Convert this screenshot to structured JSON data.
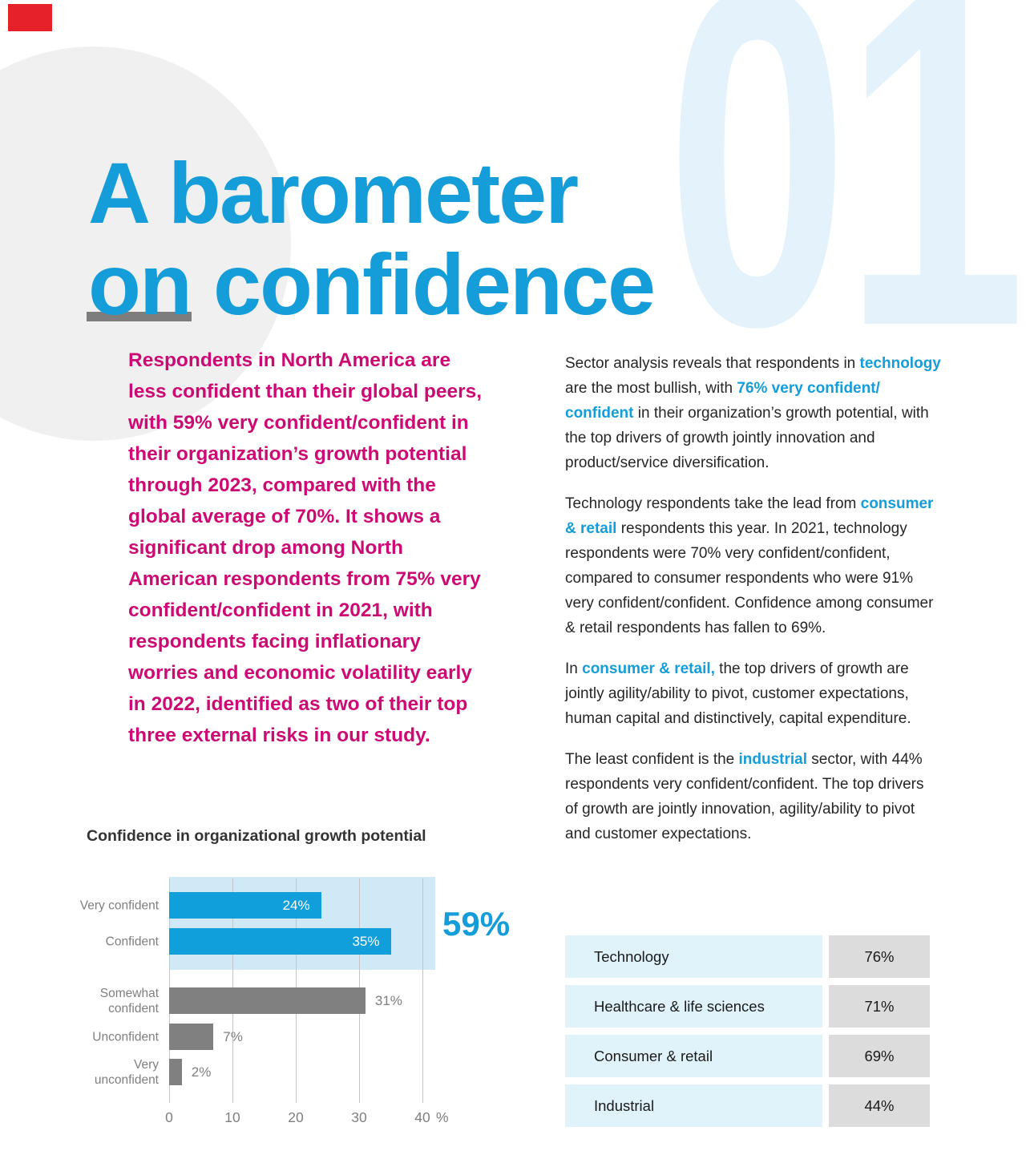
{
  "page": {
    "section_number": "01",
    "title_lines": [
      "A barometer",
      "on confidence"
    ],
    "accent_blue": "#149dd9",
    "pink": "#cd0a73",
    "light_blue_number": "#e3f2fb",
    "red_corner_marker": "#e62129"
  },
  "intro": {
    "lines": [
      "Respondents in North America are",
      "less confident than their global peers,",
      "with 59% very confident/confident in",
      "their organization’s growth potential",
      "through 2023, compared with the",
      "global average of 70%. It shows a",
      "significant drop among North",
      "American respondents from 75% very",
      "confident/confident in 2021, with",
      "respondents facing inflationary",
      "worries and economic volatility early",
      "in 2022, identified as two of their top",
      "three external risks in our study."
    ]
  },
  "sector_analysis": {
    "paragraphs": [
      {
        "segments": [
          {
            "text": "Sector analysis reveals that respondents in "
          },
          {
            "text": "technology",
            "highlight": true
          },
          {
            "text": "\nare the most bullish, with "
          },
          {
            "text": "76% very confident/\nconfident",
            "highlight": true
          },
          {
            "text": " in their organization’s growth potential, with\nthe top drivers of growth jointly innovation and\nproduct/service diversification."
          }
        ]
      },
      {
        "segments": [
          {
            "text": "Technology respondents take the lead from "
          },
          {
            "text": "consumer\n& retail",
            "highlight": true
          },
          {
            "text": " respondents this year. In 2021, technology\nrespondents were 70% very confident/confident,\ncompared to consumer respondents who were 91%\nvery confident/confident. Confidence among consumer\n& retail respondents has fallen to 69%."
          }
        ]
      },
      {
        "segments": [
          {
            "text": "In "
          },
          {
            "text": "consumer & retail,",
            "highlight": true
          },
          {
            "text": " the top drivers of growth are\njointly agility/ability to pivot, customer expectations,\nhuman capital and distinctively, capital expenditure."
          }
        ]
      },
      {
        "segments": [
          {
            "text": "The least confident is the "
          },
          {
            "text": "industrial",
            "highlight": true
          },
          {
            "text": " sector, with 44%\nrespondents very confident/confident. The top drivers\nof growth are jointly innovation, agility/ability to pivot\nand customer expectations."
          }
        ]
      }
    ]
  },
  "chart_data": {
    "type": "bar",
    "orientation": "horizontal",
    "title": "Confidence in organizational growth potential",
    "categories": [
      "Very confident",
      "Confident",
      "Somewhat confident",
      "Unconfident",
      "Very unconfident"
    ],
    "categories_display": [
      "Very confident",
      "Confident",
      "Somewhat\nconfident",
      "Unconfident",
      "Very unconfident"
    ],
    "values": [
      24,
      35,
      31,
      7,
      2
    ],
    "value_labels": [
      "24%",
      "35%",
      "31%",
      "7%",
      "2%"
    ],
    "bar_colors": [
      "#119fdc",
      "#119fdc",
      "#808080",
      "#808080",
      "#808080"
    ],
    "x_ticks": [
      "0",
      "10",
      "20",
      "30",
      "40"
    ],
    "x_unit": "%",
    "xlim": [
      0,
      42
    ],
    "grid": true,
    "highlight_group_label": "59%",
    "highlight_color": "#cfe9f7"
  },
  "sector_table": {
    "rows": [
      {
        "label": "Technology",
        "value": "76%"
      },
      {
        "label": "Healthcare & life sciences",
        "value": "71%"
      },
      {
        "label": "Consumer & retail",
        "value": "69%"
      },
      {
        "label": "Industrial",
        "value": "44%"
      }
    ]
  }
}
